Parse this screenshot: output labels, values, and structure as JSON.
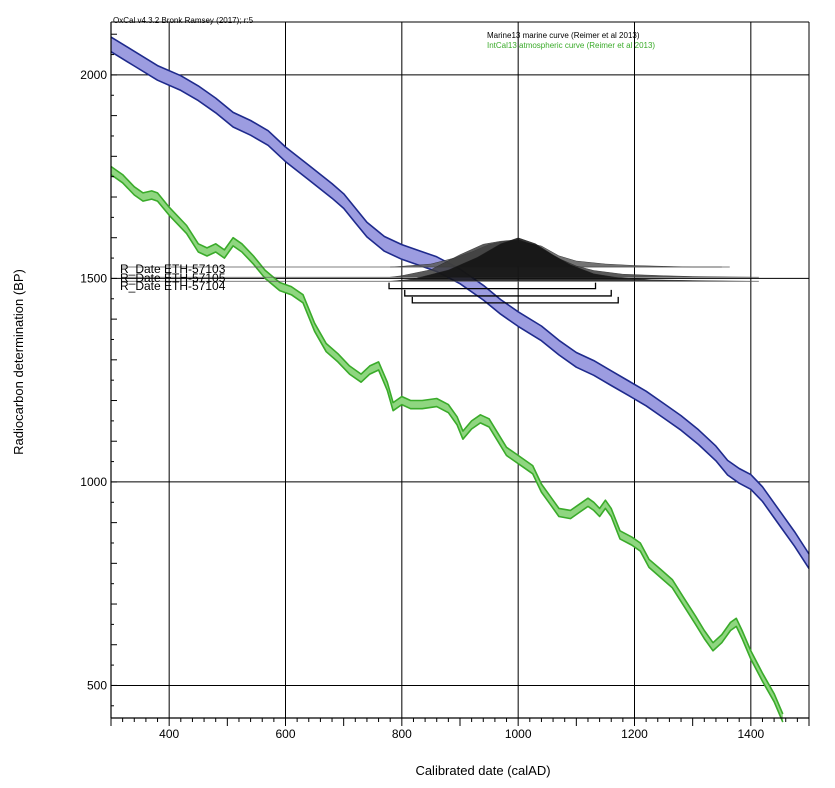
{
  "header": "OxCal v4.3.2 Bronk Ramsey (2017); r:5",
  "chart_data": {
    "type": "line",
    "title": "",
    "xlabel": "Calibrated date (calAD)",
    "ylabel": "Radiocarbon determination (BP)",
    "xlim": [
      300,
      1500
    ],
    "ylim": [
      420,
      2130
    ],
    "x_ticks": [
      400,
      600,
      800,
      1000,
      1200,
      1400
    ],
    "y_ticks": [
      500,
      1000,
      1500,
      2000
    ],
    "grid": true,
    "legend": [
      {
        "label": "Marine13 marine curve (Reimer et al 2013)",
        "color": "#000000"
      },
      {
        "label": "IntCal13 atmospheric curve (Reimer et al 2013)",
        "color": "#3aab2a"
      }
    ],
    "series": [
      {
        "name": "Marine13 marine curve (Reimer et al 2013)",
        "line_color": "#1e2a8c",
        "fill_color": "#9c9ce0",
        "points": [
          [
            300,
            2075
          ],
          [
            340,
            2040
          ],
          [
            380,
            2005
          ],
          [
            420,
            1980
          ],
          [
            450,
            1955
          ],
          [
            480,
            1925
          ],
          [
            510,
            1890
          ],
          [
            540,
            1870
          ],
          [
            570,
            1845
          ],
          [
            600,
            1805
          ],
          [
            640,
            1760
          ],
          [
            680,
            1715
          ],
          [
            700,
            1690
          ],
          [
            720,
            1655
          ],
          [
            740,
            1620
          ],
          [
            770,
            1585
          ],
          [
            800,
            1565
          ],
          [
            830,
            1550
          ],
          [
            860,
            1535
          ],
          [
            900,
            1505
          ],
          [
            940,
            1465
          ],
          [
            970,
            1430
          ],
          [
            1000,
            1400
          ],
          [
            1040,
            1365
          ],
          [
            1070,
            1330
          ],
          [
            1100,
            1300
          ],
          [
            1130,
            1280
          ],
          [
            1160,
            1255
          ],
          [
            1190,
            1230
          ],
          [
            1220,
            1205
          ],
          [
            1250,
            1175
          ],
          [
            1280,
            1145
          ],
          [
            1310,
            1110
          ],
          [
            1340,
            1070
          ],
          [
            1360,
            1035
          ],
          [
            1380,
            1015
          ],
          [
            1400,
            1000
          ],
          [
            1420,
            970
          ],
          [
            1450,
            910
          ],
          [
            1475,
            860
          ],
          [
            1500,
            805
          ]
        ],
        "half_width": 18
      },
      {
        "name": "IntCal13 atmospheric curve (Reimer et al 2013)",
        "line_color": "#3aab2a",
        "fill_color": "#8fd680",
        "points": [
          [
            300,
            1765
          ],
          [
            320,
            1745
          ],
          [
            340,
            1715
          ],
          [
            355,
            1700
          ],
          [
            370,
            1705
          ],
          [
            380,
            1700
          ],
          [
            400,
            1665
          ],
          [
            430,
            1620
          ],
          [
            450,
            1575
          ],
          [
            465,
            1565
          ],
          [
            480,
            1575
          ],
          [
            495,
            1560
          ],
          [
            510,
            1590
          ],
          [
            525,
            1575
          ],
          [
            545,
            1545
          ],
          [
            565,
            1510
          ],
          [
            590,
            1480
          ],
          [
            610,
            1470
          ],
          [
            630,
            1450
          ],
          [
            650,
            1380
          ],
          [
            670,
            1330
          ],
          [
            690,
            1305
          ],
          [
            710,
            1275
          ],
          [
            730,
            1255
          ],
          [
            745,
            1275
          ],
          [
            760,
            1285
          ],
          [
            775,
            1235
          ],
          [
            785,
            1185
          ],
          [
            800,
            1200
          ],
          [
            815,
            1190
          ],
          [
            835,
            1190
          ],
          [
            860,
            1195
          ],
          [
            880,
            1180
          ],
          [
            895,
            1150
          ],
          [
            905,
            1115
          ],
          [
            920,
            1140
          ],
          [
            935,
            1155
          ],
          [
            950,
            1145
          ],
          [
            965,
            1110
          ],
          [
            980,
            1075
          ],
          [
            995,
            1060
          ],
          [
            1010,
            1045
          ],
          [
            1025,
            1030
          ],
          [
            1040,
            985
          ],
          [
            1055,
            955
          ],
          [
            1070,
            925
          ],
          [
            1090,
            920
          ],
          [
            1105,
            935
          ],
          [
            1120,
            950
          ],
          [
            1130,
            940
          ],
          [
            1140,
            925
          ],
          [
            1150,
            945
          ],
          [
            1160,
            925
          ],
          [
            1175,
            870
          ],
          [
            1195,
            855
          ],
          [
            1210,
            840
          ],
          [
            1225,
            800
          ],
          [
            1245,
            775
          ],
          [
            1265,
            750
          ],
          [
            1285,
            705
          ],
          [
            1305,
            660
          ],
          [
            1320,
            625
          ],
          [
            1335,
            595
          ],
          [
            1350,
            615
          ],
          [
            1365,
            645
          ],
          [
            1375,
            655
          ],
          [
            1385,
            625
          ],
          [
            1400,
            575
          ],
          [
            1420,
            520
          ],
          [
            1440,
            470
          ],
          [
            1455,
            420
          ]
        ],
        "half_width": 10
      }
    ],
    "distributions": [
      {
        "name": "R_Date ETH-57103",
        "baseline": 1528,
        "range": [
          780,
          1350
        ],
        "shade": "#5a5a5a",
        "profile": [
          [
            780,
            0
          ],
          [
            800,
            1
          ],
          [
            850,
            4
          ],
          [
            890,
            12
          ],
          [
            920,
            20
          ],
          [
            950,
            30
          ],
          [
            980,
            35
          ],
          [
            1010,
            33
          ],
          [
            1040,
            28
          ],
          [
            1070,
            15
          ],
          [
            1100,
            8
          ],
          [
            1150,
            4
          ],
          [
            1200,
            2
          ],
          [
            1250,
            1
          ],
          [
            1300,
            0
          ],
          [
            1350,
            0
          ]
        ]
      },
      {
        "name": "R_Date ETH-57105",
        "baseline": 1503,
        "range": [
          780,
          1400
        ],
        "shade": "#3c3c3c",
        "profile": [
          [
            780,
            0
          ],
          [
            800,
            2
          ],
          [
            850,
            10
          ],
          [
            900,
            30
          ],
          [
            940,
            44
          ],
          [
            970,
            48
          ],
          [
            1000,
            50
          ],
          [
            1030,
            42
          ],
          [
            1070,
            25
          ],
          [
            1100,
            15
          ],
          [
            1130,
            9
          ],
          [
            1180,
            4
          ],
          [
            1250,
            2
          ],
          [
            1300,
            1
          ],
          [
            1400,
            0
          ]
        ]
      },
      {
        "name": "R_Date ETH-57104",
        "baseline": 1493,
        "range": [
          780,
          1400
        ],
        "shade": "#101010",
        "profile": [
          [
            780,
            0
          ],
          [
            820,
            3
          ],
          [
            880,
            15
          ],
          [
            930,
            32
          ],
          [
            970,
            50
          ],
          [
            1000,
            58
          ],
          [
            1030,
            50
          ],
          [
            1060,
            35
          ],
          [
            1090,
            22
          ],
          [
            1130,
            10
          ],
          [
            1170,
            5
          ],
          [
            1230,
            2
          ],
          [
            1300,
            1
          ],
          [
            1400,
            0
          ]
        ]
      }
    ],
    "range_brackets": [
      {
        "from": 778,
        "to": 1133,
        "y": 1475
      },
      {
        "from": 805,
        "to": 1160,
        "y": 1457
      },
      {
        "from": 818,
        "to": 1172,
        "y": 1440
      }
    ],
    "date_labels": [
      "R_Date ETH-57103",
      "R_Date ETH-57105",
      "R_Date ETH-57104"
    ]
  }
}
